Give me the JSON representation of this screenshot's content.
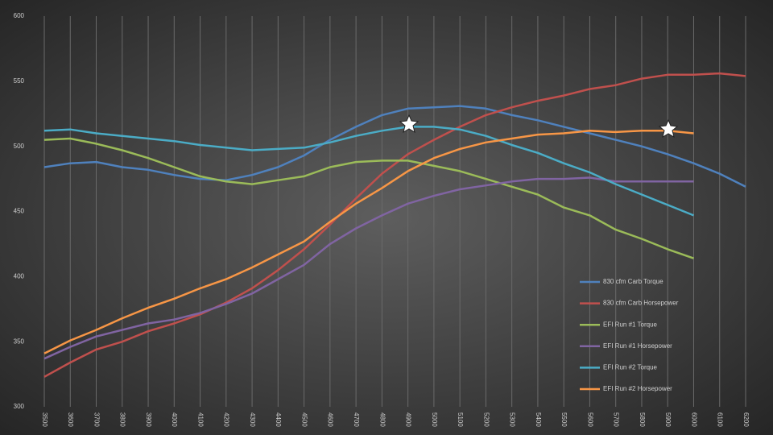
{
  "chart_data": {
    "type": "line",
    "x": [
      3500,
      3600,
      3700,
      3800,
      3900,
      4000,
      4100,
      4200,
      4300,
      4400,
      4500,
      4600,
      4700,
      4800,
      4900,
      5000,
      5100,
      5200,
      5300,
      5400,
      5500,
      5600,
      5700,
      5800,
      5900,
      6000,
      6100,
      6200
    ],
    "xlim": [
      3500,
      6200
    ],
    "xticks": [
      3500,
      3600,
      3700,
      3800,
      3900,
      4000,
      4100,
      4200,
      4300,
      4400,
      4500,
      4600,
      4700,
      4800,
      4900,
      5000,
      5100,
      5200,
      5300,
      5400,
      5500,
      5600,
      5700,
      5800,
      5900,
      6000,
      6100,
      6200
    ],
    "ylim": [
      300,
      600
    ],
    "yticks": [
      300,
      350,
      400,
      450,
      500,
      550,
      600
    ],
    "grid": "x",
    "legend": "lower right",
    "series": [
      {
        "name": "830 cfm Carb Torque",
        "color": "#4f81bd",
        "values": [
          484,
          487,
          488,
          484,
          482,
          478,
          475,
          474,
          478,
          484,
          493,
          505,
          515,
          524,
          529,
          530,
          531,
          529,
          524,
          520,
          515,
          510,
          505,
          500,
          494,
          487,
          479,
          469
        ]
      },
      {
        "name": "830 cfm Carb Horsepower",
        "color": "#c0504d",
        "values": [
          323,
          334,
          344,
          350,
          358,
          364,
          371,
          380,
          391,
          405,
          421,
          440,
          460,
          479,
          494,
          505,
          515,
          524,
          530,
          535,
          539,
          544,
          547,
          552,
          555,
          555,
          556,
          554
        ]
      },
      {
        "name": "EFI Run #1 Torque",
        "color": "#9bbb59",
        "values": [
          505,
          506,
          502,
          497,
          491,
          484,
          477,
          473,
          471,
          474,
          477,
          484,
          488,
          489,
          489,
          485,
          481,
          475,
          469,
          463,
          453,
          447,
          436,
          429,
          421,
          414,
          null,
          null
        ]
      },
      {
        "name": "EFI Run #1 Horsepower",
        "color": "#8064a2",
        "values": [
          337,
          346,
          354,
          359,
          364,
          367,
          372,
          379,
          387,
          398,
          409,
          425,
          437,
          447,
          456,
          462,
          467,
          470,
          473,
          475,
          475,
          476,
          473,
          473,
          473,
          473,
          null,
          null
        ]
      },
      {
        "name": "EFI Run #2 Torque",
        "color": "#4bacc6",
        "values": [
          512,
          513,
          510,
          508,
          506,
          504,
          501,
          499,
          497,
          498,
          499,
          503,
          508,
          512,
          515,
          515,
          513,
          508,
          501,
          495,
          487,
          480,
          471,
          463,
          455,
          447,
          null,
          null
        ]
      },
      {
        "name": "EFI Run #2 Horsepower",
        "color": "#f79646",
        "values": [
          341,
          351,
          359,
          368,
          376,
          383,
          391,
          398,
          407,
          417,
          427,
          442,
          456,
          468,
          481,
          491,
          498,
          503,
          506,
          509,
          510,
          512,
          511,
          512,
          512,
          510,
          null,
          null
        ]
      }
    ]
  }
}
